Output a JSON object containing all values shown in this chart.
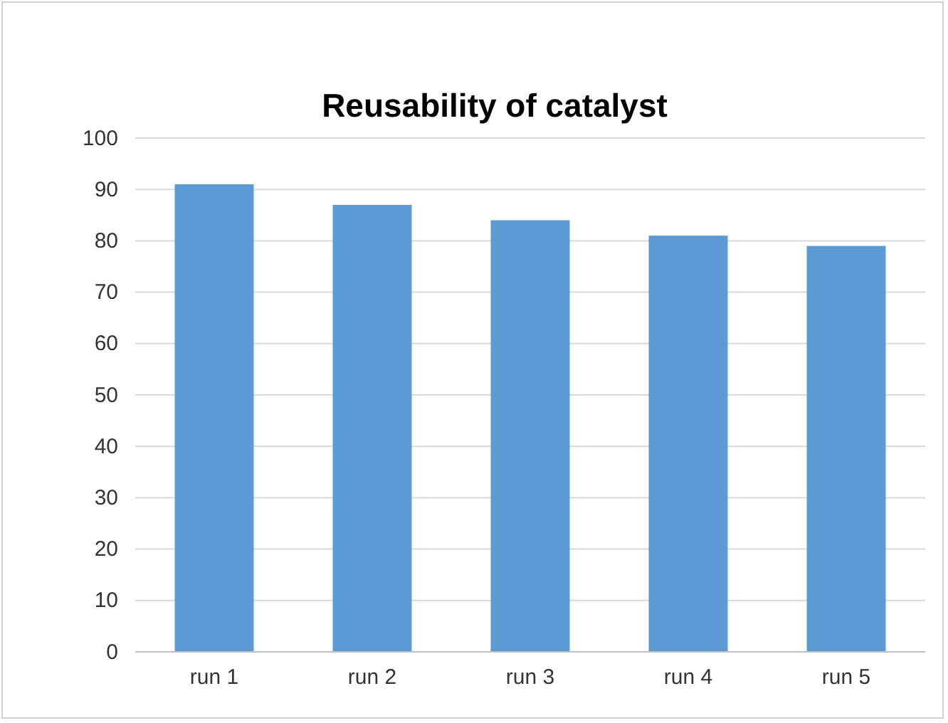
{
  "chart_data": {
    "type": "bar",
    "title": "Reusability of catalyst",
    "categories": [
      "run 1",
      "run 2",
      "run 3",
      "run 4",
      "run 5"
    ],
    "values": [
      91,
      87,
      84,
      81,
      79
    ],
    "color": "#5b9bd5",
    "ylim": [
      0,
      100
    ],
    "yticks": [
      0,
      10,
      20,
      30,
      40,
      50,
      60,
      70,
      80,
      90,
      100
    ],
    "grid": "y"
  }
}
